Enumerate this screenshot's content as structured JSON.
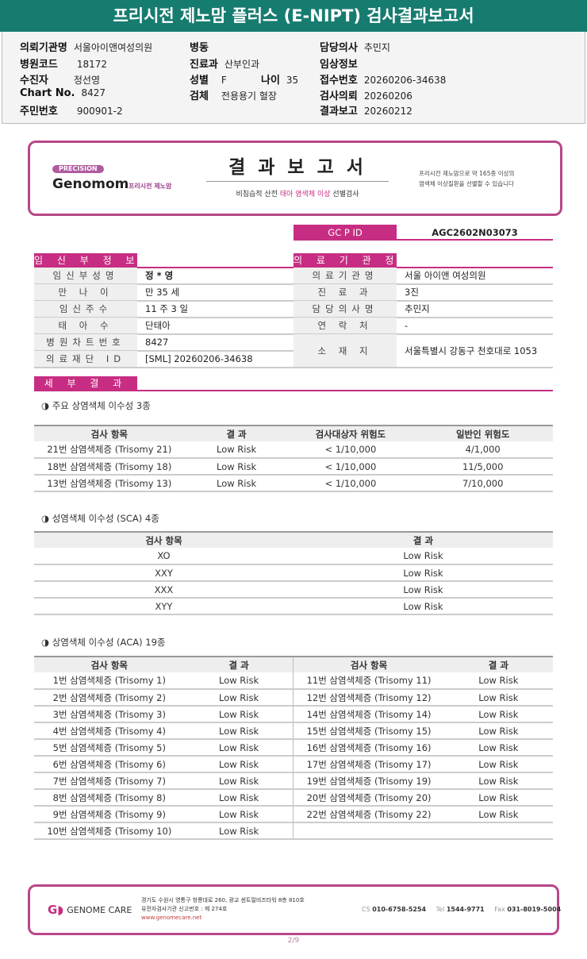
{
  "title": "프리시전 제노맘 플러스 (E-NIPT) 검사결과보고서",
  "header": {
    "institution_label": "의뢰기관명",
    "institution": "서울아이앤여성의원",
    "hospital_code_label": "병원코드",
    "hospital_code": "18172",
    "patient_label": "수진자",
    "patient": "정선영",
    "chart_label": "Chart No.",
    "chart": "8427",
    "resident_label": "주민번호",
    "resident": "900901-2",
    "ward_label": "병동",
    "ward": "",
    "dept_label": "진료과",
    "dept": "산부인과",
    "sex_label": "성별",
    "sex": "F",
    "age_label": "나이",
    "age": "35",
    "specimen_label": "검체",
    "specimen": "전용용기 혈장",
    "doctor_label": "담당의사",
    "doctor": "추민지",
    "clinical_label": "임상정보",
    "clinical": "",
    "receipt_label": "접수번호",
    "receipt": "20260206-34638",
    "request_label": "검사의뢰",
    "request": "20260206",
    "report_label": "결과보고",
    "report": "20260212"
  },
  "banner": {
    "precision": "PRECISION",
    "brand": "Genomom",
    "brand_sub": "프리시전 제노맘",
    "title": "결 과 보 고 서",
    "subtitle_a": "비침습적 산전 ",
    "subtitle_b": "태아 염색체 이상",
    "subtitle_c": " 선별검사",
    "right_line1": "프리시전 제노맘으로 약 165종 이상의",
    "right_line2": "염색체 이상질환을 선별할 수 있습니다",
    "accent": "#c72d82"
  },
  "gcpid": {
    "label": "GC P ID",
    "value": "AGC2602N03073"
  },
  "pregnant": {
    "title": "임 신 부 정 보",
    "rows": [
      {
        "k": "임신부성명",
        "v": "정 * 영"
      },
      {
        "k": "만 나 이",
        "v": "만 35 세"
      },
      {
        "k": "임신주수",
        "v": "11 주 3 일"
      },
      {
        "k": "태 아 수",
        "v": "단태아"
      },
      {
        "k": "병원차트번호",
        "v": "8427"
      },
      {
        "k": "의료재단 ID",
        "v": "[SML] 20260206-34638"
      }
    ]
  },
  "institution": {
    "title": "의 료 기 관 정 보",
    "rows": [
      {
        "k": "의료기관명",
        "v": "서울 아이앤 여성의원"
      },
      {
        "k": "진 료 과",
        "v": "3진"
      },
      {
        "k": "담당의사명",
        "v": "추민지"
      },
      {
        "k": "연 락 처",
        "v": "-"
      },
      {
        "k": "소 재 지",
        "v": "서울특별시 강동구 천호대로 1053"
      }
    ]
  },
  "detail_title": "세 부 결 과",
  "major": {
    "label": "◑ 주요 상염색체 이수성 3종",
    "headers": [
      "검사 항목",
      "결 과",
      "검사대상자 위험도",
      "일반인 위험도"
    ],
    "rows": [
      [
        "21번 삼염색체증 (Trisomy 21)",
        "Low Risk",
        "< 1/10,000",
        "4/1,000"
      ],
      [
        "18번 삼염색체증 (Trisomy 18)",
        "Low Risk",
        "< 1/10,000",
        "11/5,000"
      ],
      [
        "13번 삼염색체증 (Trisomy 13)",
        "Low Risk",
        "< 1/10,000",
        "7/10,000"
      ]
    ]
  },
  "sca": {
    "label": "◑ 성염색체 이수성 (SCA) 4종",
    "headers": [
      "검사 항목",
      "결 과"
    ],
    "rows": [
      [
        "XO",
        "Low Risk"
      ],
      [
        "XXY",
        "Low Risk"
      ],
      [
        "XXX",
        "Low Risk"
      ],
      [
        "XYY",
        "Low Risk"
      ]
    ]
  },
  "aca": {
    "label": "◑ 상염색체 이수성 (ACA) 19종",
    "headers": [
      "검사 항목",
      "결 과",
      "검사 항목",
      "결 과"
    ],
    "rows": [
      [
        "1번 삼염색체증 (Trisomy 1)",
        "Low Risk",
        "11번 삼염색체증 (Trisomy 11)",
        "Low Risk"
      ],
      [
        "2번 삼염색체증 (Trisomy 2)",
        "Low Risk",
        "12번 삼염색체증 (Trisomy 12)",
        "Low Risk"
      ],
      [
        "3번 삼염색체증 (Trisomy 3)",
        "Low Risk",
        "14번 삼염색체증 (Trisomy 14)",
        "Low Risk"
      ],
      [
        "4번 삼염색체증 (Trisomy 4)",
        "Low Risk",
        "15번 삼염색체증 (Trisomy 15)",
        "Low Risk"
      ],
      [
        "5번 삼염색체증 (Trisomy 5)",
        "Low Risk",
        "16번 삼염색체증 (Trisomy 16)",
        "Low Risk"
      ],
      [
        "6번 삼염색체증 (Trisomy 6)",
        "Low Risk",
        "17번 삼염색체증 (Trisomy 17)",
        "Low Risk"
      ],
      [
        "7번 삼염색체증 (Trisomy 7)",
        "Low Risk",
        "19번 삼염색체증 (Trisomy 19)",
        "Low Risk"
      ],
      [
        "8번 삼염색체증 (Trisomy 8)",
        "Low Risk",
        "20번 삼염색체증 (Trisomy 20)",
        "Low Risk"
      ],
      [
        "9번 삼염색체증 (Trisomy 9)",
        "Low Risk",
        "22번 삼염색체증 (Trisomy 22)",
        "Low Risk"
      ],
      [
        "10번 삼염색체증 (Trisomy 10)",
        "Low Risk",
        "",
        ""
      ]
    ]
  },
  "footer": {
    "logo": "GENOME CARE",
    "address": "경기도 수원시 영통구 창룡대로 260, 광교 센트럴비즈타워 8층 810호",
    "registration": "유전자검사기관 신고번호 : 제 274호",
    "website": "www.genomecare.net",
    "cs_label": "CS",
    "cs": "010-6758-5254",
    "tel_label": "Tel",
    "tel": "1544-9771",
    "fax_label": "Fax",
    "fax": "031-8019-5004"
  },
  "page": "2/9"
}
